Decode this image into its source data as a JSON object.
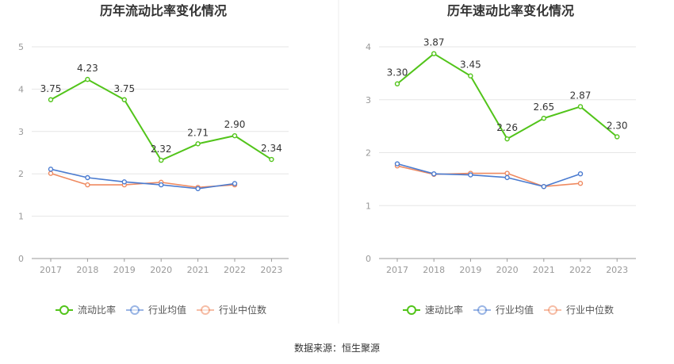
{
  "footer": {
    "source": "数据来源：恒生聚源"
  },
  "colors": {
    "main": "#52c41a",
    "avg": "#4a7bd0",
    "median": "#ef8a60",
    "grid": "#e6e6e6",
    "axis": "#999999",
    "label": "#333333",
    "divider": "#eeeeee"
  },
  "chart_data": [
    {
      "type": "line",
      "title": "历年流动比率变化情况",
      "categories": [
        "2017",
        "2018",
        "2019",
        "2020",
        "2021",
        "2022",
        "2023"
      ],
      "ylim": [
        0,
        5
      ],
      "yticks": [
        0,
        1,
        2,
        3,
        4,
        5
      ],
      "grid": true,
      "legend_position": "bottom",
      "series": [
        {
          "name": "流动比率",
          "role": "main",
          "values": [
            3.75,
            4.23,
            3.75,
            2.32,
            2.71,
            2.9,
            2.34
          ],
          "labels": [
            "3.75",
            "4.23",
            "3.75",
            "2.32",
            "2.71",
            "2.90",
            "2.34"
          ]
        },
        {
          "name": "行业均值",
          "role": "avg",
          "values": [
            2.11,
            1.91,
            1.81,
            1.74,
            1.65,
            1.77,
            null
          ]
        },
        {
          "name": "行业中位数",
          "role": "median",
          "values": [
            2.01,
            1.74,
            1.74,
            1.8,
            1.68,
            1.74,
            null
          ]
        }
      ]
    },
    {
      "type": "line",
      "title": "历年速动比率变化情况",
      "categories": [
        "2017",
        "2018",
        "2019",
        "2020",
        "2021",
        "2022",
        "2023"
      ],
      "ylim": [
        0,
        4
      ],
      "yticks": [
        0,
        1,
        2,
        3,
        4
      ],
      "grid": true,
      "legend_position": "bottom",
      "series": [
        {
          "name": "速动比率",
          "role": "main",
          "values": [
            3.3,
            3.87,
            3.45,
            2.26,
            2.65,
            2.87,
            2.3
          ],
          "labels": [
            "3.30",
            "3.87",
            "3.45",
            "2.26",
            "2.65",
            "2.87",
            "2.30"
          ]
        },
        {
          "name": "行业均值",
          "role": "avg",
          "values": [
            1.79,
            1.6,
            1.58,
            1.53,
            1.36,
            1.6,
            null
          ]
        },
        {
          "name": "行业中位数",
          "role": "median",
          "values": [
            1.75,
            1.59,
            1.61,
            1.61,
            1.36,
            1.42,
            null
          ]
        }
      ]
    }
  ]
}
